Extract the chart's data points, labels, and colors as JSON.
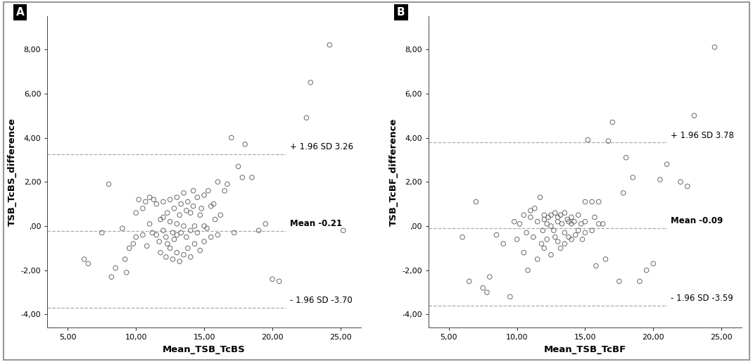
{
  "panel_A": {
    "title_label": "A",
    "xlabel": "Mean_TSB_TcBS",
    "ylabel": "TSB_TcBS_difference",
    "mean": -0.21,
    "upper_loa": 3.26,
    "lower_loa": -3.7,
    "upper_label": "+ 1.96 SD 3.26",
    "mean_label": "Mean -0.21",
    "lower_label": "- 1.96 SD -3.70",
    "xlim": [
      3.5,
      26.5
    ],
    "ylim": [
      -4.6,
      9.5
    ],
    "xticks": [
      5.0,
      10.0,
      15.0,
      20.0,
      25.0
    ],
    "yticks": [
      -4.0,
      -2.0,
      0.0,
      2.0,
      4.0,
      6.0,
      8.0
    ],
    "scatter_x": [
      6.2,
      6.5,
      7.5,
      8.0,
      8.2,
      8.5,
      9.0,
      9.2,
      9.3,
      9.5,
      9.8,
      10.0,
      10.0,
      10.2,
      10.5,
      10.5,
      10.7,
      10.8,
      11.0,
      11.0,
      11.2,
      11.3,
      11.5,
      11.5,
      11.7,
      11.8,
      11.8,
      12.0,
      12.0,
      12.0,
      12.2,
      12.2,
      12.3,
      12.3,
      12.5,
      12.5,
      12.5,
      12.7,
      12.7,
      12.8,
      12.8,
      13.0,
      13.0,
      13.0,
      13.0,
      13.2,
      13.2,
      13.3,
      13.3,
      13.5,
      13.5,
      13.5,
      13.7,
      13.7,
      13.8,
      13.8,
      14.0,
      14.0,
      14.0,
      14.2,
      14.2,
      14.3,
      14.3,
      14.5,
      14.5,
      14.7,
      14.7,
      14.8,
      15.0,
      15.0,
      15.0,
      15.2,
      15.3,
      15.5,
      15.5,
      15.7,
      15.8,
      16.0,
      16.0,
      16.2,
      16.5,
      16.7,
      17.0,
      17.2,
      17.5,
      17.8,
      18.0,
      18.5,
      19.0,
      19.5,
      20.0,
      20.5,
      22.5,
      22.8,
      24.2,
      25.2
    ],
    "scatter_y": [
      -1.5,
      -1.7,
      -0.3,
      1.9,
      -2.3,
      -1.9,
      -0.1,
      -1.5,
      -2.1,
      -1.0,
      -0.8,
      0.6,
      -0.5,
      1.2,
      0.8,
      -0.4,
      1.1,
      -0.9,
      1.3,
      0.1,
      -0.3,
      1.2,
      -0.4,
      1.0,
      -0.7,
      0.3,
      -1.2,
      1.1,
      0.4,
      -0.2,
      -0.5,
      -1.4,
      0.6,
      -0.8,
      1.2,
      0.2,
      -1.0,
      -0.3,
      -1.5,
      0.8,
      -0.6,
      1.3,
      0.1,
      -0.4,
      -1.2,
      0.5,
      -1.6,
      1.0,
      -0.3,
      1.5,
      0.0,
      -1.3,
      0.7,
      -0.5,
      1.1,
      -1.0,
      0.6,
      -0.2,
      -1.4,
      0.9,
      1.6,
      0.0,
      -0.8,
      1.3,
      -0.3,
      0.5,
      -1.1,
      0.8,
      0.0,
      -0.7,
      1.4,
      -0.1,
      1.6,
      0.9,
      -0.5,
      1.0,
      0.3,
      -0.4,
      2.0,
      0.5,
      1.6,
      1.9,
      4.0,
      -0.3,
      2.7,
      2.2,
      3.7,
      2.2,
      -0.2,
      0.1,
      -2.4,
      -2.5,
      4.9,
      6.5,
      8.2,
      -0.2
    ]
  },
  "panel_B": {
    "title_label": "B",
    "xlabel": "Mean_TSB_TcBF",
    "ylabel": "TSB_TcBF_difference",
    "mean": -0.09,
    "upper_loa": 3.78,
    "lower_loa": -3.59,
    "upper_label": "+ 1.96 SD 3.78",
    "mean_label": "Mean -0.09",
    "lower_label": "- 1.96 SD -3.59",
    "xlim": [
      3.5,
      26.5
    ],
    "ylim": [
      -4.6,
      9.5
    ],
    "xticks": [
      5.0,
      10.0,
      15.0,
      20.0,
      25.0
    ],
    "yticks": [
      -4.0,
      -2.0,
      0.0,
      2.0,
      4.0,
      6.0,
      8.0
    ],
    "scatter_x": [
      6.0,
      6.5,
      7.0,
      7.5,
      7.8,
      8.0,
      8.5,
      9.0,
      9.5,
      9.8,
      10.0,
      10.2,
      10.5,
      10.5,
      10.7,
      10.8,
      11.0,
      11.0,
      11.2,
      11.3,
      11.5,
      11.5,
      11.7,
      11.8,
      11.9,
      12.0,
      12.0,
      12.0,
      12.2,
      12.2,
      12.3,
      12.5,
      12.5,
      12.5,
      12.7,
      12.8,
      12.8,
      13.0,
      13.0,
      13.0,
      13.2,
      13.2,
      13.3,
      13.5,
      13.5,
      13.5,
      13.7,
      13.8,
      13.8,
      14.0,
      14.0,
      14.0,
      14.2,
      14.3,
      14.5,
      14.5,
      14.7,
      14.8,
      15.0,
      15.0,
      15.0,
      15.2,
      15.5,
      15.5,
      15.7,
      15.8,
      16.0,
      16.0,
      16.3,
      16.5,
      16.7,
      17.0,
      17.5,
      17.8,
      18.0,
      18.5,
      19.0,
      19.5,
      20.0,
      20.5,
      21.0,
      22.0,
      22.5,
      23.0,
      24.5
    ],
    "scatter_y": [
      -0.5,
      -2.5,
      1.1,
      -2.8,
      -3.0,
      -2.3,
      -0.4,
      -0.8,
      -3.2,
      0.2,
      -0.6,
      0.1,
      -1.2,
      0.5,
      -0.3,
      -2.0,
      0.7,
      0.4,
      -0.5,
      0.8,
      -1.5,
      0.2,
      1.3,
      -0.8,
      -0.2,
      0.3,
      -1.0,
      0.5,
      0.1,
      -0.6,
      0.4,
      -1.3,
      0.5,
      0.0,
      -0.2,
      0.6,
      -0.5,
      0.2,
      -0.7,
      0.4,
      -1.0,
      0.5,
      0.1,
      -0.3,
      0.6,
      -0.8,
      0.3,
      -0.5,
      0.2,
      0.4,
      -0.6,
      0.1,
      0.2,
      -0.4,
      0.5,
      -0.2,
      0.1,
      -0.6,
      0.2,
      1.1,
      -0.3,
      3.9,
      1.1,
      -0.2,
      0.4,
      -1.8,
      0.1,
      1.1,
      0.1,
      -1.5,
      3.85,
      4.7,
      -2.5,
      1.5,
      3.1,
      2.2,
      -2.5,
      -2.0,
      -1.7,
      2.1,
      2.8,
      2.0,
      1.8,
      5.0,
      8.1
    ]
  },
  "background_color": "#ffffff",
  "border_color": "#cccccc",
  "scatter_color": "none",
  "scatter_edge_color": "#666666",
  "line_color": "#9ab0c0",
  "tick_fontsize": 8,
  "axis_label_fontsize": 9.5,
  "annotation_fontsize": 8.5
}
